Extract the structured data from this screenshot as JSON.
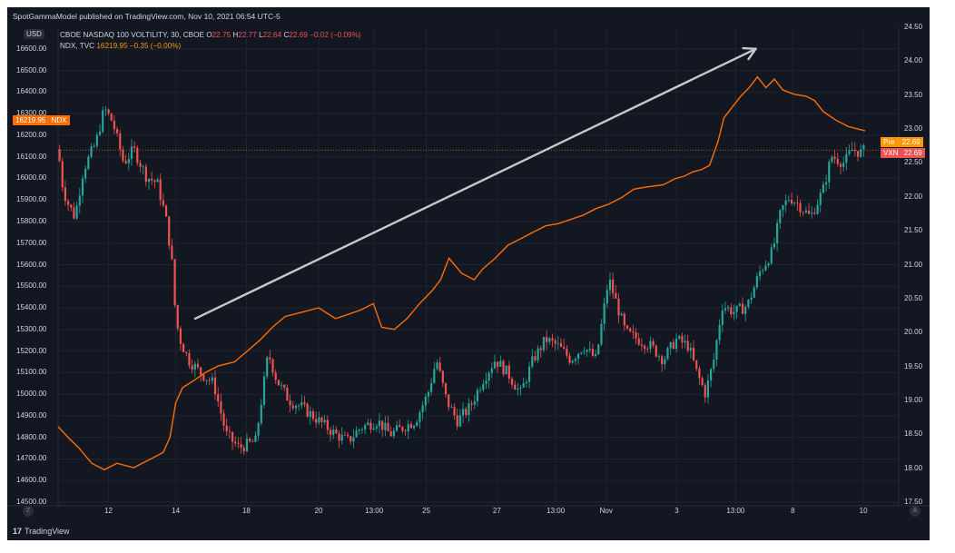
{
  "publisher": "SpotGammaModel published on TradingView.com, Nov 10, 2021 06:54 UTC-5",
  "footer": {
    "logo_text": "TradingView",
    "logo_mark": "17"
  },
  "currency_badge": "USD",
  "legend": {
    "vxn": {
      "label": "CBOE NASDAQ 100 VOLTILITY, 30, CBOE",
      "o_label": "O",
      "o_value": "22.75",
      "h_label": "H",
      "h_value": "22.77",
      "l_label": "L",
      "l_value": "22.64",
      "c_label": "C",
      "c_value": "22.69",
      "change": "−0.02 (−0.09%)"
    },
    "ndx": {
      "label": "NDX, TVC",
      "value": "16219.95",
      "change": "−0.35 (−0.00%)"
    }
  },
  "price_tags": {
    "ndx": {
      "value": "16219.95",
      "label": "NDX",
      "color": "#ff6d00"
    },
    "pre": {
      "label": "Pre",
      "value": "22.69",
      "color": "#ff9800"
    },
    "vxn": {
      "label": "VXN",
      "value": "22.69",
      "color": "#ef5350"
    }
  },
  "axis_buttons": {
    "left": "Z",
    "right": "A"
  },
  "colors": {
    "up": "#26a69a",
    "down": "#ef5350",
    "ndx_line": "#ff6d00",
    "arrow": "#c8c8c8"
  },
  "chart_data": {
    "type": "candlestick+line",
    "left_axis": {
      "series": "NDX",
      "ylim": [
        14500,
        16700
      ],
      "ticks": [
        "14500.00",
        "14600.00",
        "14700.00",
        "14800.00",
        "14900.00",
        "15000.00",
        "15100.00",
        "15200.00",
        "15300.00",
        "15400.00",
        "15500.00",
        "15600.00",
        "15700.00",
        "15800.00",
        "15900.00",
        "16000.00",
        "16100.00",
        "16200.00",
        "16300.00",
        "16400.00",
        "16500.00",
        "16600.00"
      ]
    },
    "right_axis": {
      "series": "VXN",
      "ylim": [
        17.5,
        24.5
      ],
      "ticks": [
        "17.50",
        "18.00",
        "18.50",
        "19.00",
        "19.50",
        "20.00",
        "20.50",
        "21.00",
        "21.50",
        "22.00",
        "22.50",
        "23.00",
        "23.50",
        "24.00",
        "24.50"
      ]
    },
    "x_ticks": [
      {
        "label": "12",
        "pos": 0.06
      },
      {
        "label": "14",
        "pos": 0.14
      },
      {
        "label": "18",
        "pos": 0.224
      },
      {
        "label": "20",
        "pos": 0.31
      },
      {
        "label": "13:00",
        "pos": 0.376
      },
      {
        "label": "25",
        "pos": 0.438
      },
      {
        "label": "27",
        "pos": 0.522
      },
      {
        "label": "13:00",
        "pos": 0.592
      },
      {
        "label": "Nov",
        "pos": 0.652
      },
      {
        "label": "3",
        "pos": 0.736
      },
      {
        "label": "13:00",
        "pos": 0.806
      },
      {
        "label": "8",
        "pos": 0.874
      },
      {
        "label": "10",
        "pos": 0.958
      }
    ],
    "vxn_candles_keypoints": [
      [
        0.0,
        22.7
      ],
      [
        0.006,
        22.1
      ],
      [
        0.012,
        21.9
      ],
      [
        0.02,
        21.7
      ],
      [
        0.03,
        22.4
      ],
      [
        0.045,
        22.8
      ],
      [
        0.055,
        23.3
      ],
      [
        0.065,
        23.1
      ],
      [
        0.078,
        22.5
      ],
      [
        0.09,
        22.7
      ],
      [
        0.105,
        22.3
      ],
      [
        0.118,
        22.2
      ],
      [
        0.128,
        21.7
      ],
      [
        0.135,
        21.1
      ],
      [
        0.14,
        20.2
      ],
      [
        0.145,
        19.9
      ],
      [
        0.155,
        19.6
      ],
      [
        0.17,
        19.4
      ],
      [
        0.185,
        19.25
      ],
      [
        0.2,
        18.5
      ],
      [
        0.215,
        18.3
      ],
      [
        0.235,
        18.4
      ],
      [
        0.25,
        19.7
      ],
      [
        0.26,
        19.3
      ],
      [
        0.275,
        19.0
      ],
      [
        0.29,
        18.9
      ],
      [
        0.31,
        18.7
      ],
      [
        0.33,
        18.5
      ],
      [
        0.345,
        18.4
      ],
      [
        0.36,
        18.6
      ],
      [
        0.38,
        18.7
      ],
      [
        0.395,
        18.5
      ],
      [
        0.41,
        18.6
      ],
      [
        0.425,
        18.7
      ],
      [
        0.44,
        19.1
      ],
      [
        0.45,
        19.6
      ],
      [
        0.462,
        19.0
      ],
      [
        0.475,
        18.7
      ],
      [
        0.49,
        18.9
      ],
      [
        0.505,
        19.3
      ],
      [
        0.52,
        19.6
      ],
      [
        0.535,
        19.4
      ],
      [
        0.55,
        19.1
      ],
      [
        0.565,
        19.6
      ],
      [
        0.58,
        19.9
      ],
      [
        0.595,
        19.8
      ],
      [
        0.61,
        19.6
      ],
      [
        0.625,
        19.8
      ],
      [
        0.64,
        19.6
      ],
      [
        0.655,
        20.8
      ],
      [
        0.665,
        20.4
      ],
      [
        0.675,
        20.0
      ],
      [
        0.69,
        19.9
      ],
      [
        0.705,
        19.8
      ],
      [
        0.72,
        19.6
      ],
      [
        0.735,
        19.9
      ],
      [
        0.75,
        19.8
      ],
      [
        0.76,
        19.4
      ],
      [
        0.77,
        19.1
      ],
      [
        0.78,
        19.6
      ],
      [
        0.79,
        20.4
      ],
      [
        0.805,
        20.3
      ],
      [
        0.82,
        20.4
      ],
      [
        0.835,
        20.9
      ],
      [
        0.85,
        21.2
      ],
      [
        0.86,
        21.8
      ],
      [
        0.87,
        22.0
      ],
      [
        0.88,
        21.9
      ],
      [
        0.895,
        21.7
      ],
      [
        0.91,
        22.1
      ],
      [
        0.92,
        22.6
      ],
      [
        0.935,
        22.5
      ],
      [
        0.945,
        22.7
      ],
      [
        0.955,
        22.65
      ],
      [
        0.96,
        22.69
      ]
    ],
    "ndx_line_keypoints": [
      [
        0.0,
        14850
      ],
      [
        0.012,
        14800
      ],
      [
        0.025,
        14750
      ],
      [
        0.04,
        14680
      ],
      [
        0.055,
        14650
      ],
      [
        0.07,
        14680
      ],
      [
        0.09,
        14660
      ],
      [
        0.11,
        14700
      ],
      [
        0.125,
        14730
      ],
      [
        0.133,
        14800
      ],
      [
        0.14,
        14960
      ],
      [
        0.148,
        15030
      ],
      [
        0.16,
        15060
      ],
      [
        0.175,
        15100
      ],
      [
        0.19,
        15130
      ],
      [
        0.21,
        15150
      ],
      [
        0.225,
        15200
      ],
      [
        0.24,
        15250
      ],
      [
        0.255,
        15310
      ],
      [
        0.27,
        15360
      ],
      [
        0.29,
        15380
      ],
      [
        0.31,
        15400
      ],
      [
        0.33,
        15350
      ],
      [
        0.345,
        15370
      ],
      [
        0.36,
        15390
      ],
      [
        0.375,
        15420
      ],
      [
        0.385,
        15310
      ],
      [
        0.4,
        15300
      ],
      [
        0.415,
        15350
      ],
      [
        0.43,
        15420
      ],
      [
        0.445,
        15480
      ],
      [
        0.455,
        15530
      ],
      [
        0.465,
        15630
      ],
      [
        0.48,
        15560
      ],
      [
        0.495,
        15530
      ],
      [
        0.505,
        15580
      ],
      [
        0.52,
        15630
      ],
      [
        0.535,
        15690
      ],
      [
        0.55,
        15720
      ],
      [
        0.565,
        15750
      ],
      [
        0.58,
        15780
      ],
      [
        0.595,
        15790
      ],
      [
        0.61,
        15810
      ],
      [
        0.625,
        15830
      ],
      [
        0.64,
        15860
      ],
      [
        0.655,
        15880
      ],
      [
        0.67,
        15910
      ],
      [
        0.685,
        15950
      ],
      [
        0.7,
        15960
      ],
      [
        0.72,
        15970
      ],
      [
        0.735,
        16000
      ],
      [
        0.745,
        16010
      ],
      [
        0.755,
        16030
      ],
      [
        0.765,
        16040
      ],
      [
        0.775,
        16060
      ],
      [
        0.785,
        16170
      ],
      [
        0.792,
        16280
      ],
      [
        0.8,
        16320
      ],
      [
        0.812,
        16380
      ],
      [
        0.822,
        16420
      ],
      [
        0.832,
        16470
      ],
      [
        0.842,
        16420
      ],
      [
        0.852,
        16460
      ],
      [
        0.862,
        16410
      ],
      [
        0.875,
        16390
      ],
      [
        0.89,
        16380
      ],
      [
        0.9,
        16360
      ],
      [
        0.91,
        16310
      ],
      [
        0.925,
        16270
      ],
      [
        0.94,
        16240
      ],
      [
        0.96,
        16219.95
      ]
    ],
    "annotation_arrow": {
      "from": [
        0.163,
        15350
      ],
      "to": [
        0.83,
        16600
      ]
    }
  }
}
